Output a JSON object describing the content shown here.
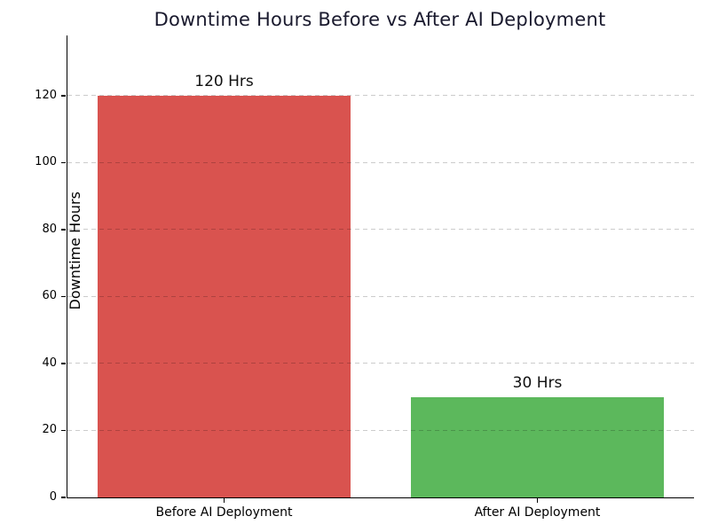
{
  "chart_data": {
    "type": "bar",
    "title": "Downtime Hours Before vs After AI Deployment",
    "title_color": "#1a1a2e",
    "ylabel": "Downtime Hours",
    "xlabel": "",
    "categories": [
      "Before AI Deployment",
      "After AI Deployment"
    ],
    "values": [
      120,
      30
    ],
    "bar_labels": [
      "120 Hrs",
      "30 Hrs"
    ],
    "bar_colors": [
      "#d9534f",
      "#5cb85c"
    ],
    "yticks": [
      0,
      20,
      40,
      60,
      80,
      100,
      120
    ],
    "ylim": [
      0,
      138
    ],
    "grid": "dashed-horizontal",
    "grid_color": "#cccccc",
    "legend": "none",
    "background": "#ffffff"
  }
}
